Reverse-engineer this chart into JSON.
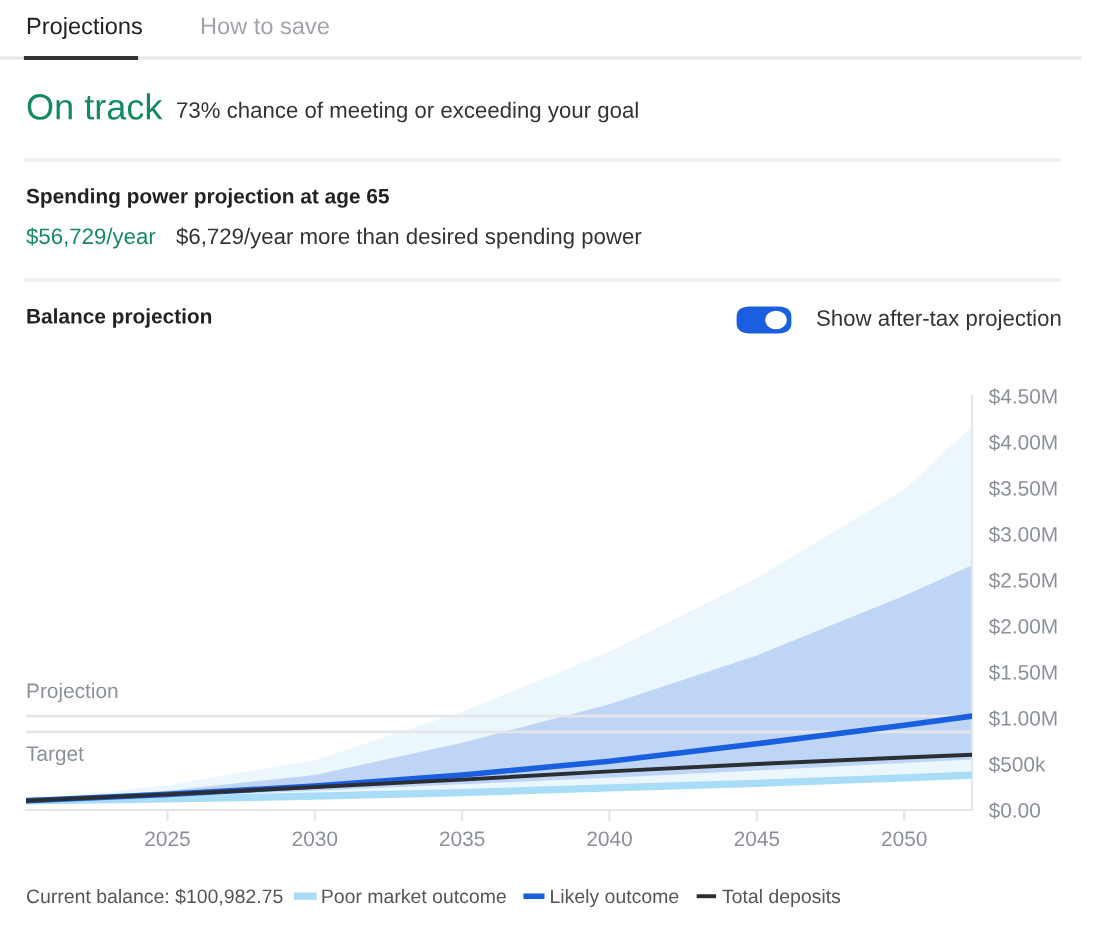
{
  "chart_data": {
    "type": "line",
    "title": "Balance projection",
    "annotations": [
      "Projections",
      "How to save",
      "On track",
      "73% chance of meeting or exceeding your goal",
      "Spending power projection at age 65",
      "$56,729/year",
      "$6,729/year more than desired spending power",
      "Show after-tax projection",
      "Current balance: $100,982.75"
    ],
    "x": [
      2020.2,
      2025,
      2030,
      2035,
      2040,
      2045,
      2050,
      2052.3
    ],
    "series": [
      {
        "name": "Poor market outcome",
        "color": "#a8dcf7",
        "values": [
          100000,
          120000,
          150000,
          190000,
          240000,
          290000,
          350000,
          380000
        ],
        "lower": [
          100000,
          120000,
          150000,
          190000,
          240000,
          290000,
          350000,
          380000
        ],
        "upper": [
          100000,
          270000,
          540000,
          1070000,
          1720000,
          2520000,
          3480000,
          4170000
        ]
      },
      {
        "name": "Likely outcome",
        "color": "#1a5fe0",
        "values": [
          100000,
          170000,
          260000,
          380000,
          530000,
          720000,
          920000,
          1020000
        ],
        "lower": [
          100000,
          150000,
          210000,
          280000,
          350000,
          430000,
          510000,
          550000
        ],
        "upper": [
          100000,
          210000,
          380000,
          730000,
          1150000,
          1680000,
          2330000,
          2660000
        ]
      },
      {
        "name": "Total deposits",
        "color": "#2b2f33",
        "values": [
          100000,
          170000,
          250000,
          330000,
          420000,
          500000,
          570000,
          600000
        ]
      }
    ],
    "xlim": [
      2020.2,
      2052.3
    ],
    "xticks": [
      2025,
      2030,
      2035,
      2040,
      2045,
      2050
    ],
    "ylim": [
      0,
      4500000
    ],
    "yticks": [
      {
        "value": 0,
        "label": "$0.00"
      },
      {
        "value": 500000,
        "label": "$500k"
      },
      {
        "value": 1000000,
        "label": "$1.00M"
      },
      {
        "value": 1500000,
        "label": "$1.50M"
      },
      {
        "value": 2000000,
        "label": "$2.00M"
      },
      {
        "value": 2500000,
        "label": "$2.50M"
      },
      {
        "value": 3000000,
        "label": "$3.00M"
      },
      {
        "value": 3500000,
        "label": "$3.50M"
      },
      {
        "value": 4000000,
        "label": "$4.00M"
      },
      {
        "value": 4500000,
        "label": "$4.50M"
      }
    ],
    "ref_lines": [
      {
        "axis": "y",
        "value": 1020000,
        "label": "Projection",
        "color": "#e4e6ea"
      },
      {
        "axis": "y",
        "value": 850000,
        "label": "Target",
        "color": "#e4e6ea"
      }
    ],
    "grid": false,
    "legend": "bottom",
    "marker": "none",
    "line_style": "solid"
  }
}
